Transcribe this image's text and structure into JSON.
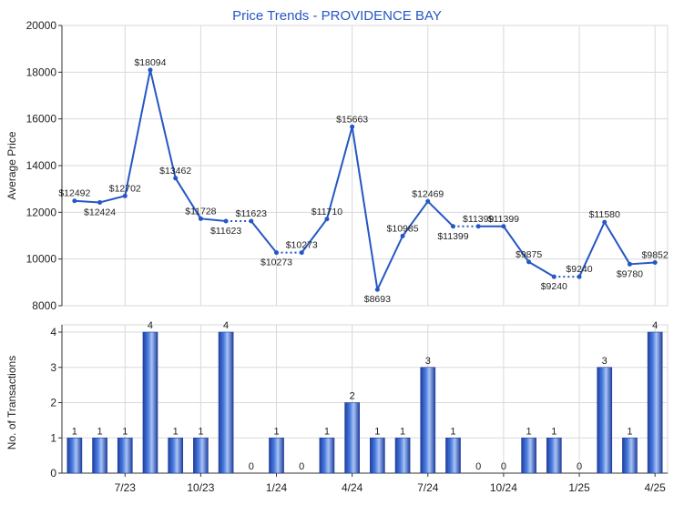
{
  "title": "Price Trends - PROVIDENCE BAY",
  "colors": {
    "line": "#2557c4",
    "bar_dark": "#1f3f9e",
    "bar_mid": "#4a7be0",
    "bar_light": "#a9c4f5",
    "title": "#2557c4",
    "grid": "#d9d9d9",
    "axis": "#333333",
    "text": "#222222"
  },
  "chart_data": [
    {
      "type": "line",
      "title": "Price Trends - PROVIDENCE BAY",
      "ylabel": "Average Price",
      "ylim": [
        8000,
        20000
      ],
      "yticks": [
        8000,
        10000,
        12000,
        14000,
        16000,
        18000,
        20000
      ],
      "grid": true,
      "interpolated_segments_dotted": true,
      "series": [
        {
          "values": [
            12492,
            12424,
            12702,
            18094,
            13462,
            11728,
            11623,
            11623,
            10273,
            10273,
            11710,
            15663,
            8693,
            10985,
            12469,
            11399,
            11399,
            11399,
            9875,
            9240,
            9240,
            11580,
            9780,
            9852
          ],
          "labels": [
            "$12492",
            "$12424",
            "$12702",
            "$18094",
            "$13462",
            "$11728",
            "$11623",
            "$11623",
            "$10273",
            "$10273",
            "$11710",
            "$15663",
            "$8693",
            "$10985",
            "$12469",
            "$11399",
            "$11399",
            "$11399",
            "$9875",
            "$9240",
            "$9240",
            "$11580",
            "$9780",
            "$9852"
          ],
          "interpolated": [
            false,
            false,
            false,
            false,
            false,
            false,
            false,
            true,
            false,
            true,
            false,
            false,
            false,
            false,
            false,
            false,
            true,
            false,
            false,
            false,
            true,
            false,
            false,
            false
          ]
        }
      ]
    },
    {
      "type": "bar",
      "ylabel": "No. of Transactions",
      "ylim": [
        0,
        4
      ],
      "yticks": [
        0,
        1,
        2,
        3,
        4
      ],
      "grid": true,
      "categories": [
        "",
        "",
        "7/23",
        "",
        "",
        "10/23",
        "",
        "",
        "1/24",
        "",
        "",
        "4/24",
        "",
        "",
        "7/24",
        "",
        "",
        "10/24",
        "",
        "",
        "1/25",
        "",
        "",
        "4/25"
      ],
      "values": [
        1,
        1,
        1,
        4,
        1,
        1,
        4,
        0,
        1,
        0,
        1,
        2,
        1,
        1,
        3,
        1,
        0,
        0,
        1,
        1,
        0,
        3,
        1,
        4
      ]
    }
  ]
}
